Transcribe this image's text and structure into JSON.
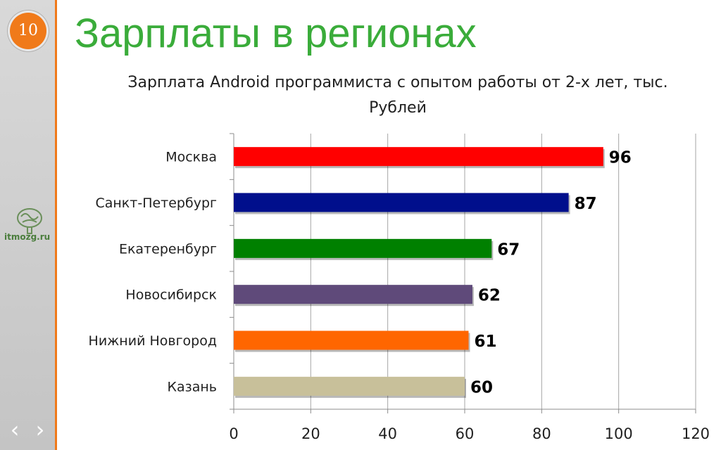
{
  "slide": {
    "number": "10",
    "title": "Зарплаты в регионах",
    "logo_text": "itmozg.ru",
    "nav_prev_icon": "chevron-left-icon",
    "nav_next_icon": "chevron-right-icon",
    "nav_prev_glyph": "‹",
    "nav_next_glyph": "›",
    "colors": {
      "title": "#3aac3a",
      "accent": "#f07a1a"
    }
  },
  "chart_data": {
    "type": "bar",
    "orientation": "horizontal",
    "title": "Зарплата Android программиста с опытом работы от 2-х лет, тыс. Рублей",
    "categories": [
      "Москва",
      "Санкт-Петербург",
      "Екатеренбург",
      "Новосибирск",
      "Нижний Новгород",
      "Казань"
    ],
    "values": [
      96,
      87,
      67,
      62,
      61,
      60
    ],
    "data_labels": [
      "96",
      "87",
      "67",
      "62",
      "61",
      "60"
    ],
    "colors": [
      "#ff0000",
      "#000f8c",
      "#008000",
      "#5f4a7a",
      "#ff6600",
      "#c8c09a"
    ],
    "xlim": [
      0,
      120
    ],
    "xticks": [
      0,
      20,
      40,
      60,
      80,
      100,
      120
    ],
    "xtick_labels": [
      "0",
      "20",
      "40",
      "60",
      "80",
      "100",
      "120"
    ],
    "grid": true,
    "legend": "none"
  }
}
